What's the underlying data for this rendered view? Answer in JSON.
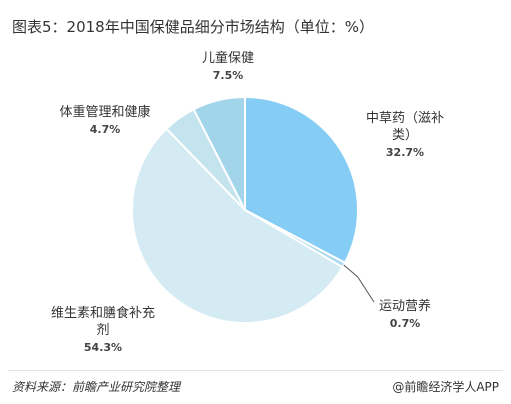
{
  "chart_data": {
    "type": "pie",
    "title": "图表5：2018年中国保健品细分市场结构（单位：%）",
    "categories": [
      "中草药（滋补类）",
      "运动营养",
      "维生素和膳食补充剂",
      "体重管理和健康",
      "儿童保健"
    ],
    "values": [
      32.7,
      0.7,
      54.3,
      4.7,
      7.5
    ],
    "value_labels": [
      "32.7%",
      "0.7%",
      "54.3%",
      "4.7%",
      "7.5%"
    ],
    "colors": [
      "#85cdf5",
      "#a9d9ee",
      "#d4ebf4",
      "#c3e3ee",
      "#a3d5ea"
    ],
    "source": "资料来源：前瞻产业研究院整理",
    "brand": "@前瞻经济学人APP"
  }
}
